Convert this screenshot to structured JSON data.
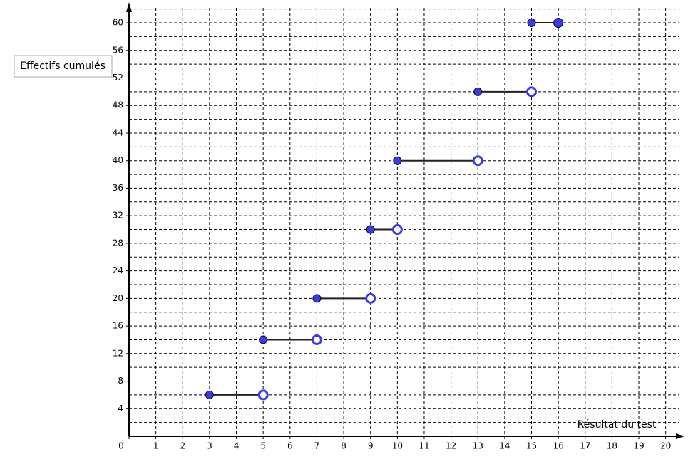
{
  "chart_data": {
    "type": "step",
    "y_label": "Effectifs cumulés",
    "x_label": "Résultat du test",
    "x_start": [
      3,
      5,
      7,
      9,
      10,
      13,
      15
    ],
    "x_end": [
      5,
      7,
      9,
      10,
      13,
      15,
      16
    ],
    "values": [
      6,
      14,
      20,
      30,
      40,
      50,
      60
    ],
    "end_closed": [
      false,
      false,
      false,
      false,
      false,
      false,
      true
    ],
    "color": "#3a3af0",
    "xlim": [
      0,
      20.7
    ],
    "ylim": [
      0,
      63
    ],
    "xticks": [
      0,
      1,
      2,
      3,
      4,
      5,
      6,
      7,
      8,
      9,
      10,
      11,
      12,
      13,
      14,
      15,
      16,
      17,
      18,
      19,
      20
    ],
    "yticks": [
      4,
      8,
      12,
      16,
      20,
      24,
      28,
      32,
      36,
      40,
      44,
      48,
      52,
      56,
      60
    ],
    "ygrid": [
      2,
      4,
      6,
      8,
      10,
      12,
      14,
      16,
      18,
      20,
      22,
      24,
      26,
      28,
      30,
      32,
      34,
      36,
      38,
      40,
      42,
      44,
      46,
      48,
      50,
      52,
      54,
      56,
      58,
      60,
      62
    ],
    "grid": true
  }
}
